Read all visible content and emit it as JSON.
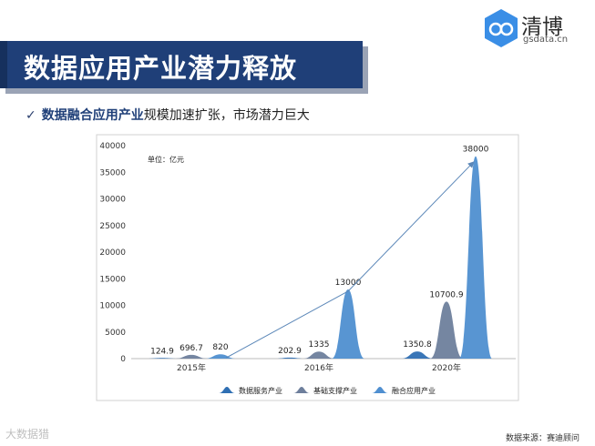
{
  "header": {
    "title": "数据应用产业潜力释放",
    "logo_text": "清博",
    "logo_sub": "gsdata.cn"
  },
  "subtitle": {
    "check": "✓",
    "highlight": "数据融合应用产业",
    "rest": "规模加速扩张，市场潜力巨大"
  },
  "footer": {
    "source": "数据来源：赛迪顾问",
    "watermark": "大数据猎"
  },
  "colors": {
    "banner": "#1f3f78",
    "series_service": "#2f6fb3",
    "series_support": "#6e7f9c",
    "series_fusion": "#4f8fd0"
  },
  "chart_data": {
    "type": "area",
    "unit_label": "单位：亿元",
    "categories": [
      "2015年",
      "2016年",
      "2020年"
    ],
    "series": [
      {
        "name": "数据服务产业",
        "values": [
          124.9,
          202.9,
          1350.8
        ],
        "labels": [
          "124.9",
          "202.9",
          "1350.8"
        ]
      },
      {
        "name": "基础支撑产业",
        "values": [
          696.7,
          1335,
          10700.9
        ],
        "labels": [
          "696.7",
          "1335",
          "10700.9"
        ]
      },
      {
        "name": "融合应用产业",
        "values": [
          820,
          13000,
          38000
        ],
        "labels": [
          "820",
          "13000",
          "38000"
        ]
      }
    ],
    "ylim": [
      0,
      40000
    ],
    "yticks": [
      0,
      5000,
      10000,
      15000,
      20000,
      25000,
      30000,
      35000,
      40000
    ],
    "legend_position": "bottom",
    "trend_arrow": true,
    "grid": false
  }
}
